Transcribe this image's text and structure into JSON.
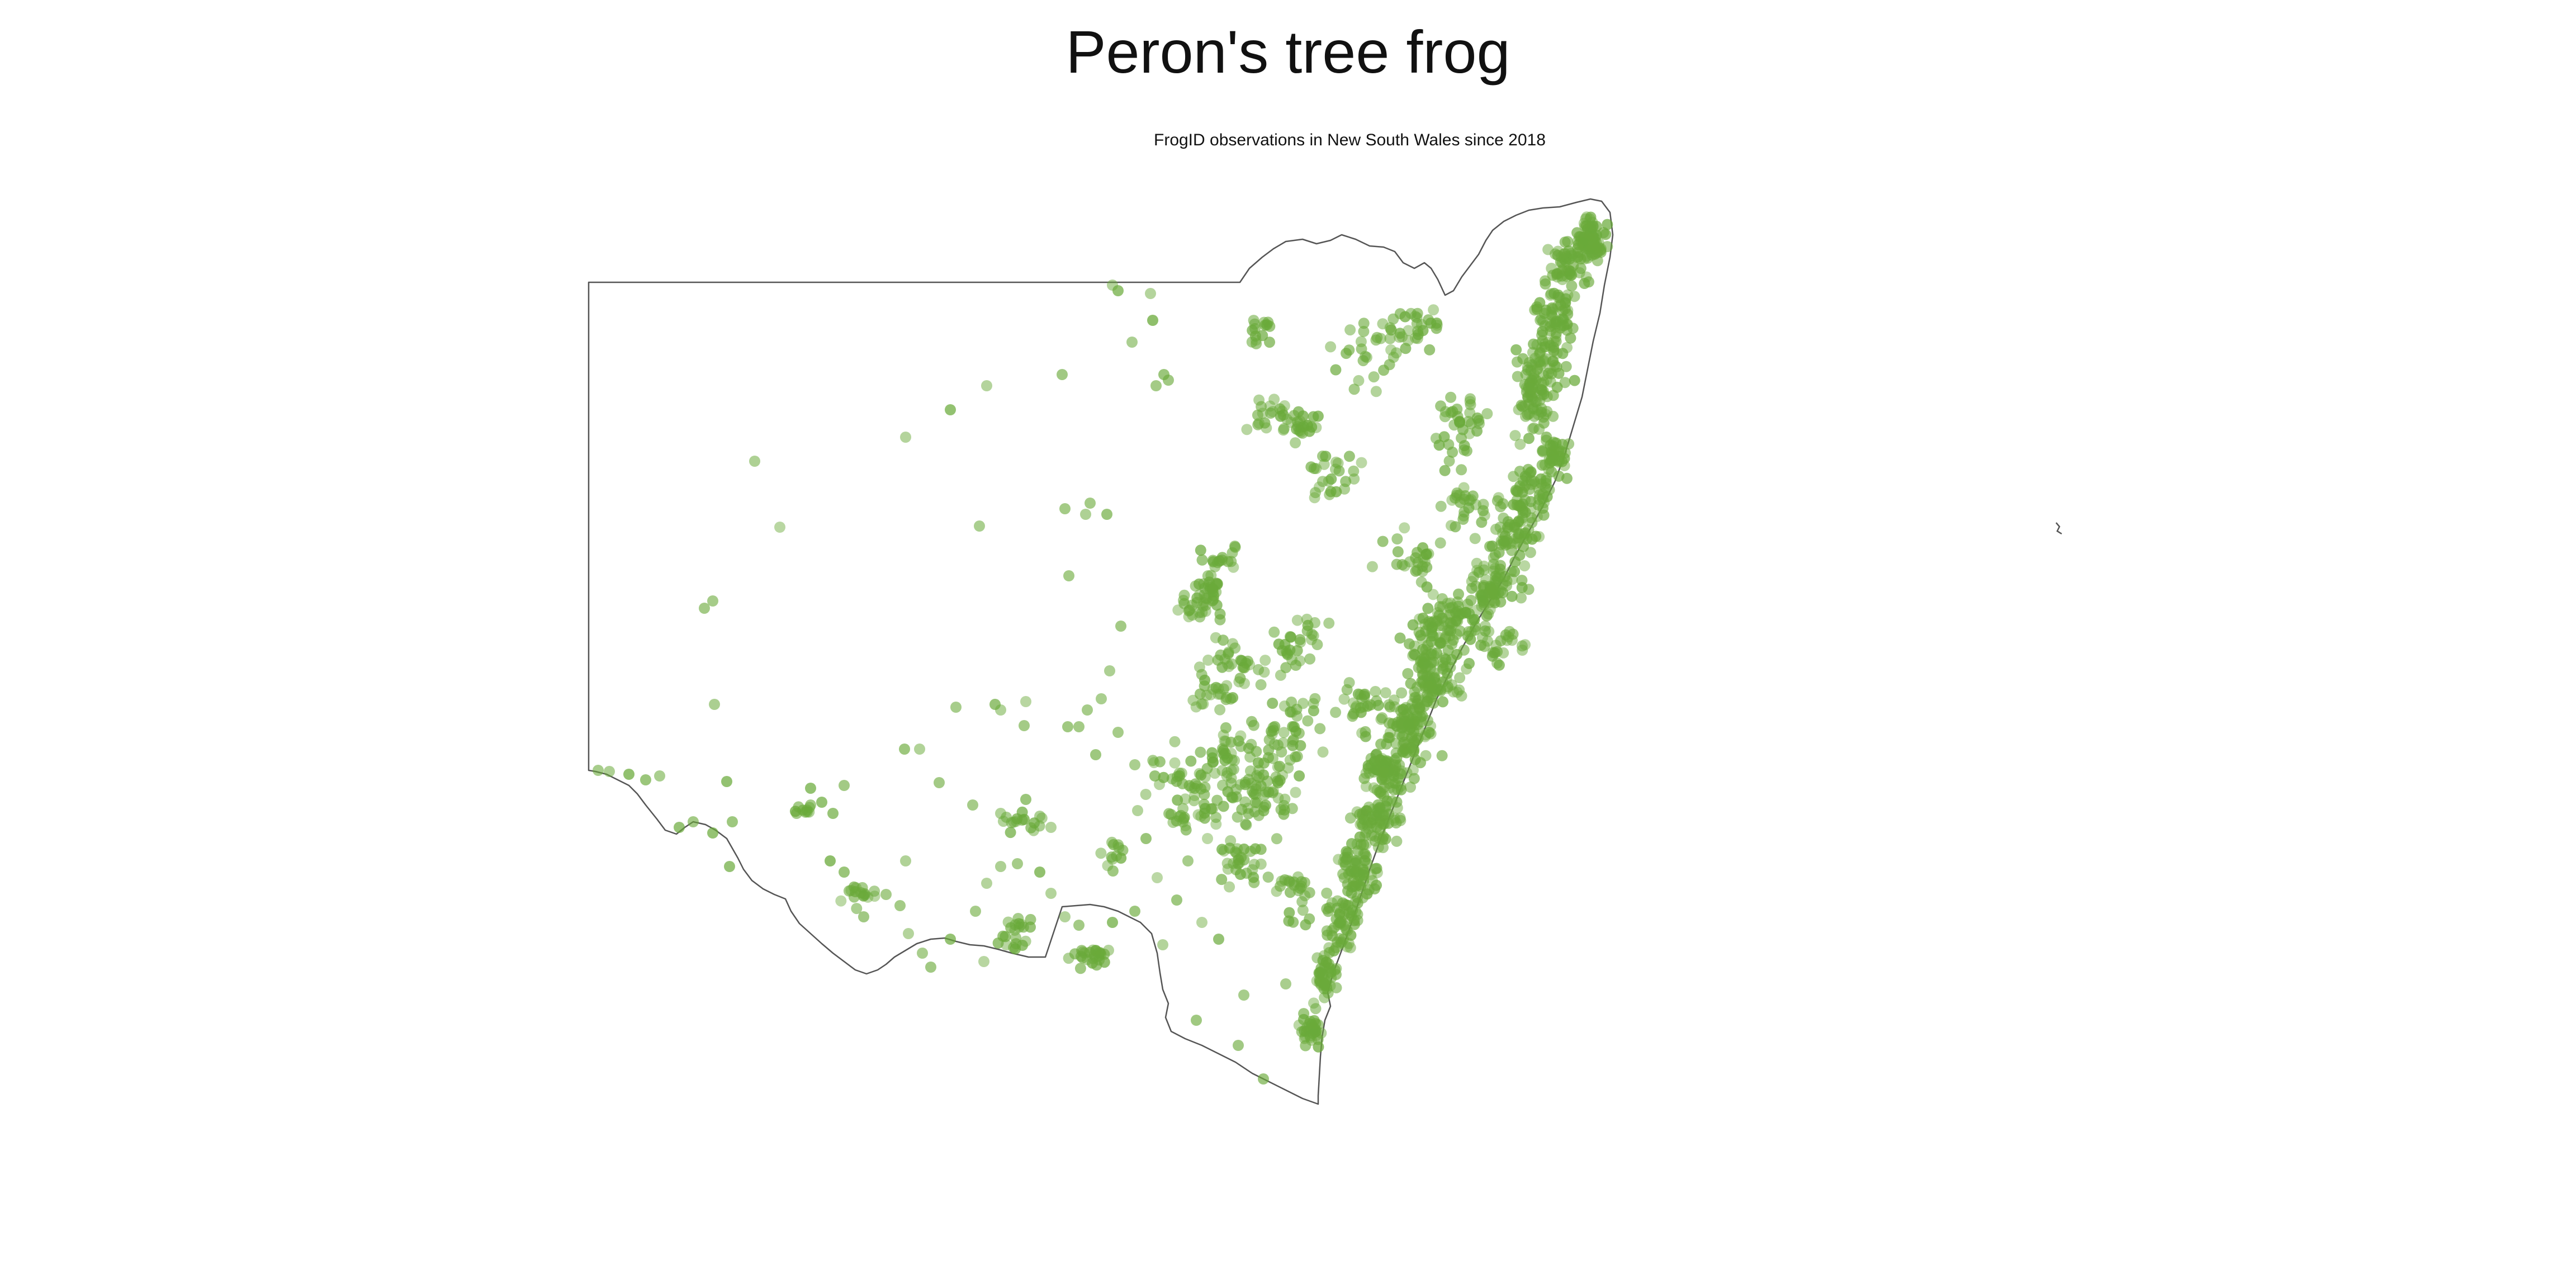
{
  "map": {
    "title": "Peron's tree frog",
    "subtitle": "FrogID observations in New South Wales since 2018",
    "region": "New South Wales",
    "marker_color": "#6aaa3a",
    "marker_opacity": 0.55,
    "boundary_color": "#555555"
  }
}
